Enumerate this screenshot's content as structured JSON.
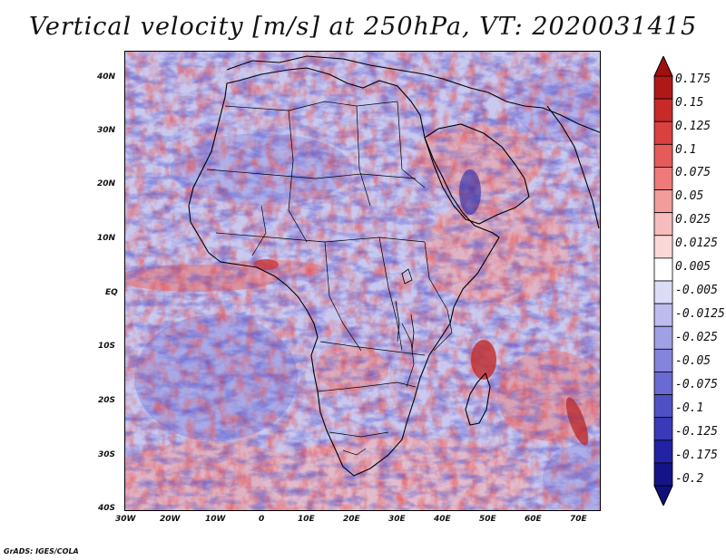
{
  "title": "Vertical velocity [m/s] at 250hPa, VT: 2020031415",
  "credit": "GrADS: IGES/COLA",
  "map": {
    "lat_labels": [
      "40N",
      "30N",
      "20N",
      "10N",
      "EQ",
      "10S",
      "20S",
      "30S",
      "40S"
    ],
    "lon_labels": [
      "30W",
      "20W",
      "10W",
      "0",
      "10E",
      "20E",
      "30E",
      "40E",
      "50E",
      "60E",
      "70E"
    ],
    "lon_range": [
      -30,
      75
    ],
    "lat_range": [
      -40,
      45
    ]
  },
  "colorbar": {
    "labels": [
      "0.175",
      "0.15",
      "0.125",
      "0.1",
      "0.075",
      "0.05",
      "0.025",
      "0.0125",
      "0.005",
      "-0.005",
      "-0.0125",
      "-0.025",
      "-0.05",
      "-0.075",
      "-0.1",
      "-0.125",
      "-0.175",
      "-0.2"
    ],
    "colors": [
      "#b01818",
      "#c82a2a",
      "#da4040",
      "#e65a5a",
      "#ee7a7a",
      "#f39c9c",
      "#f7bcbc",
      "#fad8d8",
      "#ffffff",
      "#dcdcf6",
      "#bcbcef",
      "#a0a0e6",
      "#8484dc",
      "#6a6ad2",
      "#5050c6",
      "#3a3ab8",
      "#2222a4",
      "#141488"
    ],
    "top_triangle_color": "#a01010",
    "bottom_triangle_color": "#10107a"
  },
  "field_colors": {
    "background": "#c9c9f0",
    "up": "#f08b8b",
    "down": "#7d7ddc",
    "coast": "#000000"
  }
}
